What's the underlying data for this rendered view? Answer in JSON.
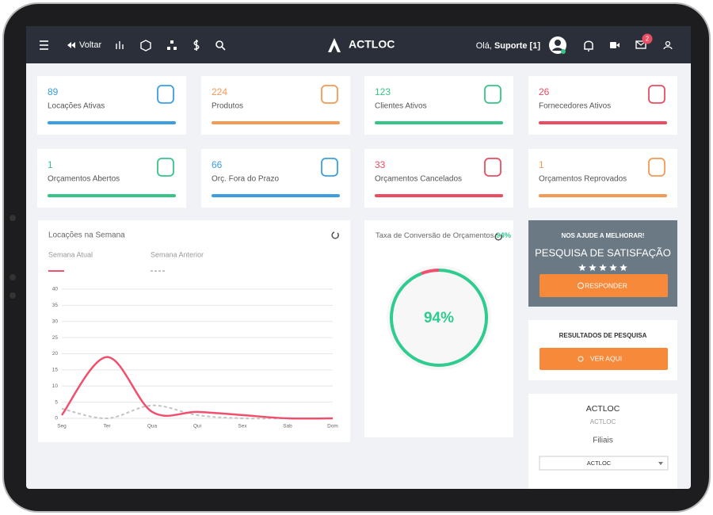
{
  "header": {
    "back": "Voltar",
    "brand": "ACTLOC",
    "greeting": "Olá,",
    "user": "Suporte [1]",
    "notification_count": "2"
  },
  "stats": [
    {
      "value": 89,
      "label": "Locações Ativas",
      "color": "#3b9ee0"
    },
    {
      "value": 224,
      "label": "Produtos",
      "color": "#f39a55"
    },
    {
      "value": 123,
      "label": "Clientes Ativos",
      "color": "#37c488"
    },
    {
      "value": 26,
      "label": "Fornecedores Ativos",
      "color": "#ea4c62"
    },
    {
      "value": 1,
      "label": "Orçamentos Abertos",
      "color": "#37c488"
    },
    {
      "value": 66,
      "label": "Orç. Fora do Prazo",
      "color": "#3b9ee0"
    },
    {
      "value": 33,
      "label": "Orçamentos Cancelados",
      "color": "#ea4c62"
    },
    {
      "value": 1,
      "label": "Orçamentos Reprovados",
      "color": "#f39a55"
    }
  ],
  "weekly_chart": {
    "type": "line",
    "title": "Locações na Semana",
    "categories": [
      "Seg",
      "Ter",
      "Qua",
      "Qui",
      "Sex",
      "Sab",
      "Dom"
    ],
    "series": [
      {
        "name": "Semana Atual",
        "color": "#f0506e",
        "values": [
          1,
          19,
          2,
          2,
          1,
          0,
          0
        ]
      },
      {
        "name": "Semana Anterior",
        "color": "#c4c4c4",
        "dashed": true,
        "values": [
          3,
          0,
          4,
          1,
          0,
          0,
          0
        ]
      }
    ],
    "ylim": [
      0,
      40
    ],
    "yticks": [
      0,
      5,
      10,
      15,
      20,
      25,
      30,
      35,
      40
    ],
    "grid": true
  },
  "conversion": {
    "title": "Taxa de Conversão de Orçamentos",
    "rate": 94,
    "rate_label": "94%",
    "color": "#2ecc8f",
    "rest_color": "#f0506e"
  },
  "survey": {
    "kicker": "NOS AJUDE A MELHORAR!",
    "title": "PESQUISA DE SATISFAÇÃO",
    "button": "RESPONDER"
  },
  "results": {
    "title": "RESULTADOS DE PESQUISA",
    "button": "VER AQUI"
  },
  "company": {
    "name": "ACTLOC",
    "subtitle": "ACTLOC",
    "branches_label": "Filiais",
    "selected_branch": "ACTLOC"
  }
}
